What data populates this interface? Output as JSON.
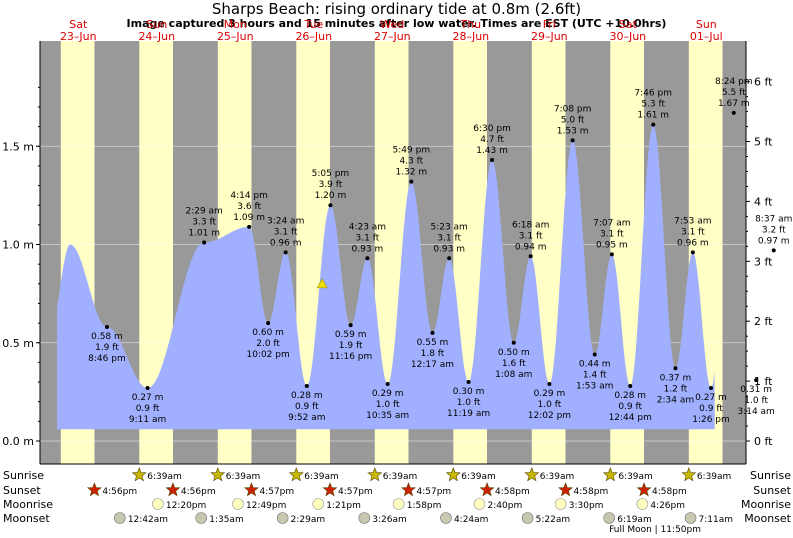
{
  "title": "Sharps Beach: rising  ordinary tide at 0.8m (2.6ft)",
  "subtitle": "Image captured 3 hours and 15 minutes after low water. Times are EST (UTC +10.0hrs)",
  "colors": {
    "day": "#ffffc6",
    "night": "#999999",
    "water": "#a0b0ff",
    "day_text": "#dd0000",
    "sunrise_star": "#c8b800",
    "sunset_star": "#cc2200",
    "moonrise": "#ffffc0",
    "moonset": "#c8c8b0"
  },
  "days": [
    {
      "dow": "Sat",
      "date": "23–Jun"
    },
    {
      "dow": "Sun",
      "date": "24–Jun"
    },
    {
      "dow": "Mon",
      "date": "25–Jun"
    },
    {
      "dow": "Tue",
      "date": "26–Jun"
    },
    {
      "dow": "Wed",
      "date": "27–Jun"
    },
    {
      "dow": "Thu",
      "date": "28–Jun"
    },
    {
      "dow": "Fri",
      "date": "29–Jun"
    },
    {
      "dow": "Sat",
      "date": "30–Jun"
    },
    {
      "dow": "Sun",
      "date": "01–Jul"
    }
  ],
  "left_axis": {
    "ticks": [
      "0.0 m",
      "0.5 m",
      "1.0 m",
      "1.5 m"
    ]
  },
  "right_axis": {
    "ticks": [
      "0 ft",
      "1 ft",
      "2 ft",
      "3 ft",
      "4 ft",
      "5 ft",
      "6 ft"
    ]
  },
  "chart_data": {
    "type": "area",
    "ylabel": "",
    "ylim": [
      0,
      1.88
    ],
    "current_level_m": 0.8,
    "extremes": [
      {
        "type": "high",
        "time": "Sat 23-Jun ~9:30am",
        "height_m": 1.0,
        "labeled": false
      },
      {
        "type": "low",
        "time": "8:46 pm",
        "height_m": 0.58,
        "height_ft": "1.9 ft",
        "labeled": true
      },
      {
        "type": "low",
        "time": "9:11 am",
        "height_m": 0.27,
        "height_ft": "0.9 ft",
        "labeled": true
      },
      {
        "type": "high",
        "time": "2:29 am",
        "height_m": 1.01,
        "height_ft": "3.3 ft",
        "labeled": true
      },
      {
        "type": "high",
        "time": "4:14 pm",
        "height_m": 1.09,
        "height_ft": "3.6 ft",
        "labeled": true
      },
      {
        "type": "low",
        "time": "10:02 pm",
        "height_m": 0.6,
        "height_ft": "2.0 ft",
        "labeled": true
      },
      {
        "type": "high",
        "time": "3:24 am",
        "height_m": 0.96,
        "height_ft": "3.1 ft",
        "labeled": true
      },
      {
        "type": "low",
        "time": "9:52 am",
        "height_m": 0.28,
        "height_ft": "0.9 ft",
        "labeled": true
      },
      {
        "type": "high",
        "time": "5:05 pm",
        "height_m": 1.2,
        "height_ft": "3.9 ft",
        "labeled": true
      },
      {
        "type": "low",
        "time": "11:16 pm",
        "height_m": 0.59,
        "height_ft": "1.9 ft",
        "labeled": true
      },
      {
        "type": "high",
        "time": "4:23 am",
        "height_m": 0.93,
        "height_ft": "3.1 ft",
        "labeled": true
      },
      {
        "type": "low",
        "time": "10:35 am",
        "height_m": 0.29,
        "height_ft": "1.0 ft",
        "labeled": true
      },
      {
        "type": "high",
        "time": "5:49 pm",
        "height_m": 1.32,
        "height_ft": "4.3 ft",
        "labeled": true
      },
      {
        "type": "low",
        "time": "12:17 am",
        "height_m": 0.55,
        "height_ft": "1.8 ft",
        "labeled": true
      },
      {
        "type": "high",
        "time": "5:23 am",
        "height_m": 0.93,
        "height_ft": "3.1 ft",
        "labeled": true
      },
      {
        "type": "low",
        "time": "11:19 am",
        "height_m": 0.3,
        "height_ft": "1.0 ft",
        "labeled": true
      },
      {
        "type": "high",
        "time": "6:30 pm",
        "height_m": 1.43,
        "height_ft": "4.7 ft",
        "labeled": true
      },
      {
        "type": "low",
        "time": "1:08 am",
        "height_m": 0.5,
        "height_ft": "1.6 ft",
        "labeled": true
      },
      {
        "type": "high",
        "time": "6:18 am",
        "height_m": 0.94,
        "height_ft": "3.1 ft",
        "labeled": true
      },
      {
        "type": "low",
        "time": "12:02 pm",
        "height_m": 0.29,
        "height_ft": "1.0 ft",
        "labeled": true
      },
      {
        "type": "high",
        "time": "7:08 pm",
        "height_m": 1.53,
        "height_ft": "5.0 ft",
        "labeled": true
      },
      {
        "type": "low",
        "time": "1:53 am",
        "height_m": 0.44,
        "height_ft": "1.4 ft",
        "labeled": true
      },
      {
        "type": "high",
        "time": "7:07 am",
        "height_m": 0.95,
        "height_ft": "3.1 ft",
        "labeled": true
      },
      {
        "type": "low",
        "time": "12:44 pm",
        "height_m": 0.28,
        "height_ft": "0.9 ft",
        "labeled": true
      },
      {
        "type": "high",
        "time": "7:46 pm",
        "height_m": 1.61,
        "height_ft": "5.3 ft",
        "labeled": true
      },
      {
        "type": "low",
        "time": "2:34 am",
        "height_m": 0.37,
        "height_ft": "1.2 ft",
        "labeled": true
      },
      {
        "type": "high",
        "time": "7:53 am",
        "height_m": 0.96,
        "height_ft": "3.1 ft",
        "labeled": true
      },
      {
        "type": "low",
        "time": "1:26 pm",
        "height_m": 0.27,
        "height_ft": "0.9 ft",
        "labeled": true
      },
      {
        "type": "high",
        "time": "8:24 pm",
        "height_m": 1.67,
        "height_ft": "5.5 ft",
        "labeled": true
      },
      {
        "type": "low",
        "time": "3:14 am",
        "height_m": 0.31,
        "height_ft": "1.0 ft",
        "labeled": true
      },
      {
        "type": "high",
        "time": "8:37 am",
        "height_m": 0.97,
        "height_ft": "3.2 ft",
        "labeled": true
      },
      {
        "type": "low",
        "time": "Sun 01-Jul ~2:30pm",
        "height_m": 0.28,
        "labeled": false
      }
    ]
  },
  "legend_rows": [
    {
      "name": "Sunrise",
      "marker": "star-yellow",
      "times": [
        "",
        "6:39am",
        "6:39am",
        "6:39am",
        "6:39am",
        "6:39am",
        "6:39am",
        "6:39am",
        "6:39am"
      ]
    },
    {
      "name": "Sunset",
      "marker": "star-red",
      "times": [
        "4:56pm",
        "4:56pm",
        "4:57pm",
        "4:57pm",
        "4:57pm",
        "4:58pm",
        "4:58pm",
        "4:58pm",
        ""
      ]
    },
    {
      "name": "Moonrise",
      "marker": "moon-rise",
      "times": [
        "",
        "12:20pm",
        "12:49pm",
        "1:21pm",
        "1:58pm",
        "2:40pm",
        "3:30pm",
        "4:26pm",
        ""
      ]
    },
    {
      "name": "Moonset",
      "marker": "moon-set",
      "times": [
        "",
        "12:42am",
        "1:35am",
        "2:29am",
        "3:26am",
        "4:24am",
        "5:22am",
        "6:19am",
        "7:11am"
      ]
    }
  ],
  "full_moon": "Full Moon | 11:50pm"
}
